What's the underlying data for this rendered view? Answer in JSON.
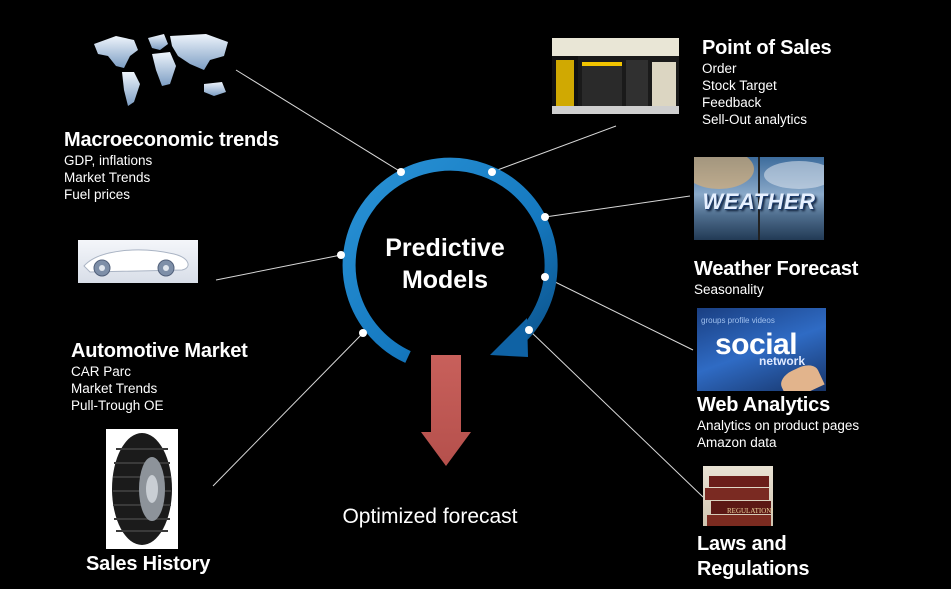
{
  "center": {
    "line1": "Predictive",
    "line2": "Models"
  },
  "output": {
    "label": "Optimized forecast"
  },
  "colors": {
    "ring": "#1579c0",
    "ring_dark": "#0b4f86",
    "arrow": "#c8605b",
    "background": "#000000"
  },
  "inputs": {
    "macro": {
      "title": "Macroeconomic trends",
      "items": [
        "GDP, inflations",
        "Market Trends",
        "Fuel prices"
      ],
      "icon": "world-map-image"
    },
    "pos": {
      "title": "Point of Sales",
      "items": [
        "Order",
        "Stock Target",
        "Feedback",
        "Sell-Out analytics"
      ],
      "icon": "tire-shop-photo"
    },
    "weather": {
      "title": "Weather Forecast",
      "items": [
        "Seasonality"
      ],
      "image_text": "WEATHER",
      "icon": "weather-image"
    },
    "automotive": {
      "title": "Automotive Market",
      "items": [
        "CAR Parc",
        "Market Trends",
        "Pull-Trough OE"
      ],
      "icon": "concept-car-image"
    },
    "web": {
      "title": "Web Analytics",
      "items": [
        "Analytics on product pages",
        "Amazon data"
      ],
      "image_text": "social",
      "image_text2": "network",
      "icon": "social-network-image"
    },
    "sales": {
      "title": "Sales History",
      "items": [],
      "icon": "tire-image"
    },
    "laws": {
      "title_line1": "Laws and",
      "title_line2": "Regulations",
      "items": [],
      "image_text": "REGULATIONS",
      "icon": "law-books-image"
    }
  }
}
